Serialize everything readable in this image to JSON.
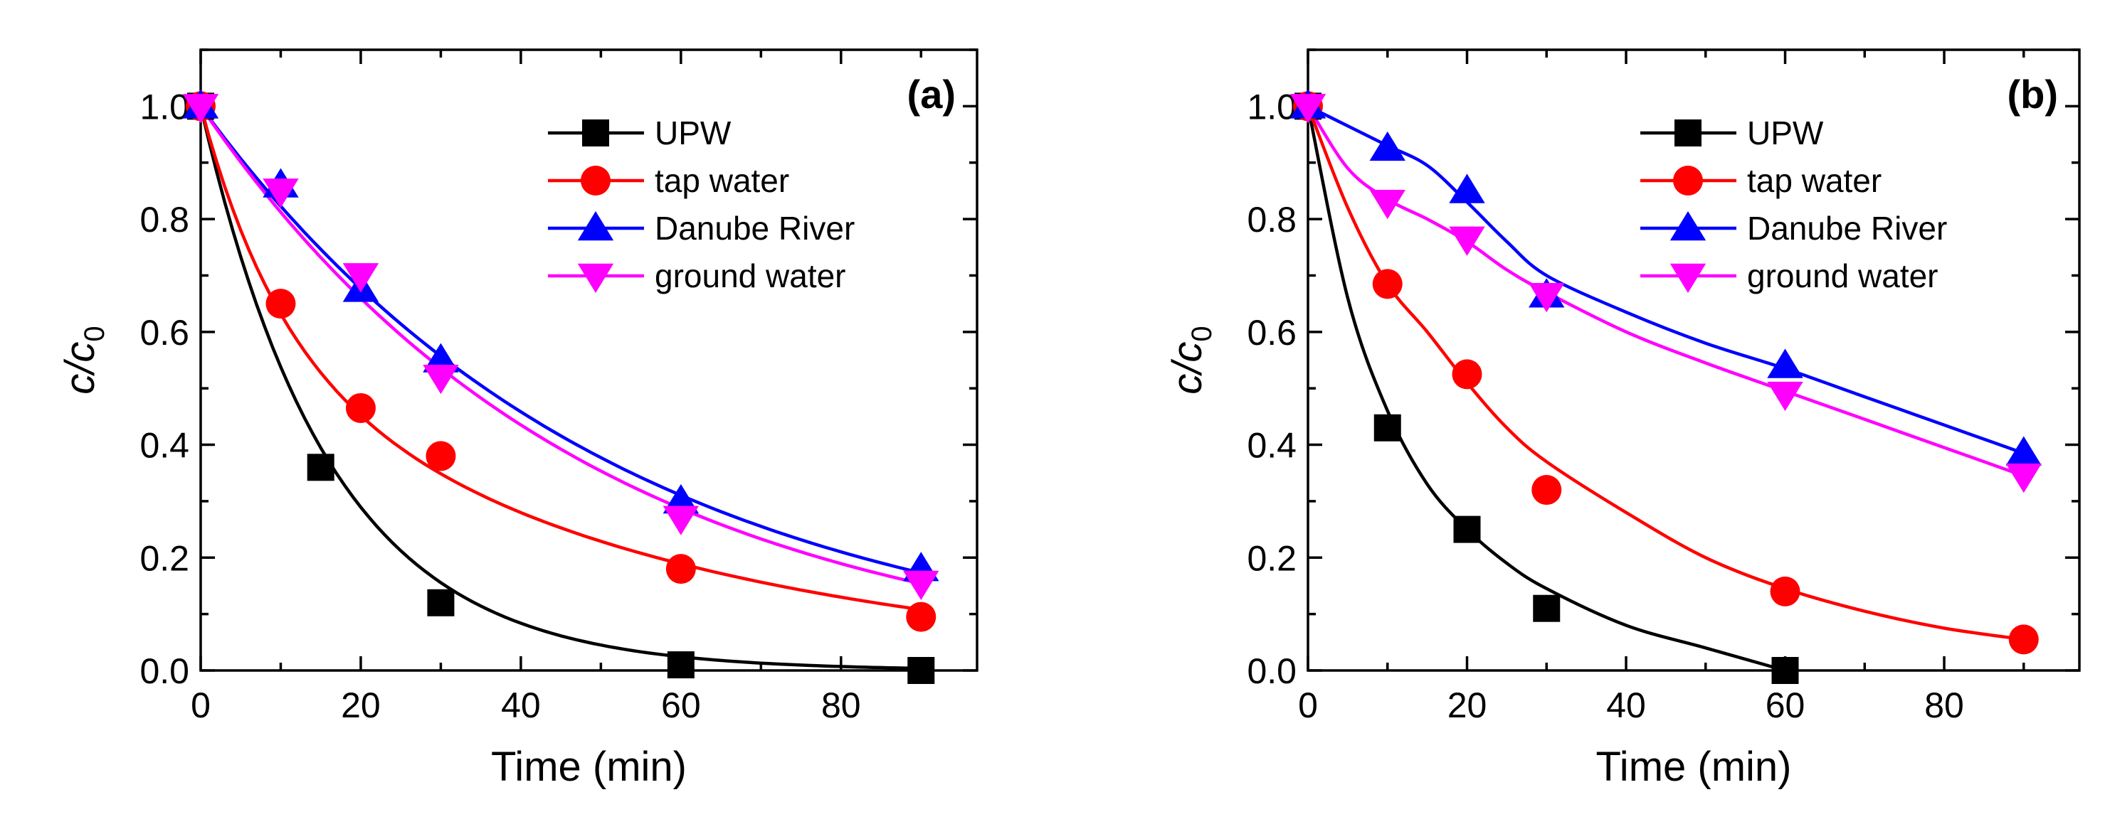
{
  "chart_data": [
    {
      "type": "scatter",
      "panel_label": "(a)",
      "xlabel": "Time (min)",
      "ylabel_main": "c/c",
      "ylabel_sub": "0",
      "xlim": [
        0,
        97
      ],
      "ylim": [
        0,
        1.1
      ],
      "xticks": [
        0,
        20,
        40,
        60,
        80
      ],
      "xtick_labels": [
        "0",
        "20",
        "40",
        "60",
        "80"
      ],
      "yticks": [
        0,
        0.2,
        0.4,
        0.6,
        0.8,
        1.0
      ],
      "ytick_labels": [
        "0.0",
        "0.2",
        "0.4",
        "0.6",
        "0.8",
        "1.0"
      ],
      "legend_position": "top-right",
      "series": [
        {
          "name": "UPW",
          "color": "#000000",
          "marker": "square",
          "x": [
            0,
            15,
            30,
            60,
            90
          ],
          "y": [
            1.0,
            0.36,
            0.12,
            0.01,
            0.0
          ],
          "fit": {
            "type": "exponential",
            "a": 1.0,
            "k": 0.062
          }
        },
        {
          "name": "tap water",
          "color": "#ff0000",
          "marker": "circle",
          "x": [
            0,
            10,
            20,
            30,
            60,
            90
          ],
          "y": [
            1.0,
            0.65,
            0.465,
            0.38,
            0.18,
            0.095
          ],
          "fit": {
            "type": "biexponential",
            "a": 0.43,
            "k1": 0.1,
            "b": 0.57,
            "k2": 0.0185
          }
        },
        {
          "name": "Danube River",
          "color": "#0000ff",
          "marker": "triangle-up",
          "x": [
            0,
            10,
            20,
            30,
            60,
            90
          ],
          "y": [
            1.0,
            0.86,
            0.675,
            0.55,
            0.3,
            0.18
          ],
          "fit": {
            "type": "exponential",
            "a": 1.0,
            "k": 0.0195
          }
        },
        {
          "name": "ground water",
          "color": "#ff00ff",
          "marker": "triangle-down",
          "x": [
            0,
            10,
            20,
            30,
            60,
            90
          ],
          "y": [
            1.0,
            0.85,
            0.7,
            0.52,
            0.27,
            0.155
          ],
          "fit": {
            "type": "exponential",
            "a": 1.0,
            "k": 0.0208
          }
        }
      ]
    },
    {
      "type": "scatter",
      "panel_label": "(b)",
      "xlabel": "Time (min)",
      "ylabel_main": "c/c",
      "ylabel_sub": "0",
      "xlim": [
        0,
        97
      ],
      "ylim": [
        0,
        1.1
      ],
      "xticks": [
        0,
        20,
        40,
        60,
        80
      ],
      "xtick_labels": [
        "0",
        "20",
        "40",
        "60",
        "80"
      ],
      "yticks": [
        0,
        0.2,
        0.4,
        0.6,
        0.8,
        1.0
      ],
      "ytick_labels": [
        "0.0",
        "0.2",
        "0.4",
        "0.6",
        "0.8",
        "1.0"
      ],
      "legend_position": "top-right",
      "series": [
        {
          "name": "UPW",
          "color": "#000000",
          "marker": "square",
          "x": [
            0,
            10,
            20,
            30,
            60
          ],
          "y": [
            1.0,
            0.43,
            0.25,
            0.11,
            0.0
          ],
          "fit": {
            "type": "smooth",
            "x": [
              0,
              5,
              10,
              15,
              20,
              25,
              30,
              40,
              50,
              60
            ],
            "y": [
              1.0,
              0.66,
              0.46,
              0.33,
              0.25,
              0.19,
              0.145,
              0.08,
              0.04,
              0.0
            ]
          }
        },
        {
          "name": "tap water",
          "color": "#ff0000",
          "marker": "circle",
          "x": [
            0,
            10,
            20,
            30,
            60,
            90
          ],
          "y": [
            1.0,
            0.685,
            0.525,
            0.32,
            0.14,
            0.055
          ],
          "fit": {
            "type": "smooth",
            "x": [
              0,
              5,
              10,
              15,
              20,
              25,
              30,
              40,
              50,
              60,
              70,
              80,
              90
            ],
            "y": [
              1.0,
              0.82,
              0.685,
              0.6,
              0.51,
              0.43,
              0.37,
              0.28,
              0.2,
              0.145,
              0.105,
              0.075,
              0.055
            ]
          }
        },
        {
          "name": "Danube River",
          "color": "#0000ff",
          "marker": "triangle-up",
          "x": [
            0,
            10,
            20,
            30,
            60,
            90
          ],
          "y": [
            1.0,
            0.925,
            0.85,
            0.665,
            0.54,
            0.385
          ],
          "fit": {
            "type": "smooth",
            "x": [
              0,
              5,
              10,
              15,
              20,
              25,
              30,
              40,
              50,
              60,
              70,
              80,
              90
            ],
            "y": [
              1.0,
              0.965,
              0.93,
              0.895,
              0.83,
              0.76,
              0.7,
              0.635,
              0.58,
              0.535,
              0.485,
              0.435,
              0.385
            ]
          }
        },
        {
          "name": "ground water",
          "color": "#ff00ff",
          "marker": "triangle-down",
          "x": [
            0,
            10,
            20,
            30,
            60,
            90
          ],
          "y": [
            1.0,
            0.83,
            0.765,
            0.665,
            0.49,
            0.345
          ],
          "fit": {
            "type": "smooth",
            "x": [
              0,
              5,
              10,
              15,
              20,
              25,
              30,
              40,
              50,
              60,
              70,
              80,
              90
            ],
            "y": [
              1.0,
              0.89,
              0.835,
              0.8,
              0.76,
              0.71,
              0.67,
              0.6,
              0.545,
              0.495,
              0.445,
              0.395,
              0.345
            ]
          }
        }
      ]
    }
  ]
}
